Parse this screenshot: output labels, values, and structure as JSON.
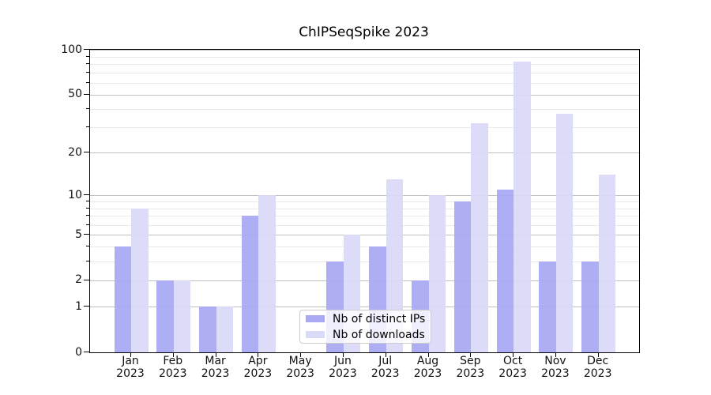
{
  "title": "ChIPSeqSpike 2023",
  "legend": {
    "items": [
      {
        "label": "Nb of distinct IPs",
        "color": "#a8a8f3"
      },
      {
        "label": "Nb of downloads",
        "color": "#d9d9f8"
      }
    ]
  },
  "y_axis": {
    "tick_labels": [
      "100",
      "50",
      "20",
      "10",
      "5",
      "2",
      "1",
      "0"
    ],
    "tick_values": [
      100,
      50,
      20,
      10,
      5,
      2,
      1,
      0
    ],
    "minor_gridline_values": [
      3,
      4,
      6,
      7,
      8,
      9,
      30,
      40,
      60,
      70,
      80,
      90
    ],
    "scale": "log10(1+value)",
    "range": [
      0,
      100
    ]
  },
  "x_axis": {
    "months": [
      "Jan",
      "Feb",
      "Mar",
      "Apr",
      "May",
      "Jun",
      "Jul",
      "Aug",
      "Sep",
      "Oct",
      "Nov",
      "Dec"
    ],
    "year": "2023"
  },
  "chart_data": {
    "type": "bar",
    "title": "ChIPSeqSpike 2023",
    "categories": [
      "Jan 2023",
      "Feb 2023",
      "Mar 2023",
      "Apr 2023",
      "May 2023",
      "Jun 2023",
      "Jul 2023",
      "Aug 2023",
      "Sep 2023",
      "Oct 2023",
      "Nov 2023",
      "Dec 2023"
    ],
    "series": [
      {
        "name": "Nb of distinct IPs",
        "color": "#a8a8f3",
        "values": [
          4,
          2,
          1,
          7,
          0,
          3,
          4,
          2,
          9,
          11,
          3,
          3
        ]
      },
      {
        "name": "Nb of downloads",
        "color": "#d9d9f8",
        "values": [
          8,
          2,
          1,
          10,
          0,
          5,
          13,
          10,
          32,
          83,
          37,
          14
        ]
      }
    ],
    "y_scale": "log1p",
    "ylim": [
      0,
      100
    ],
    "grid": true,
    "legend_position": "lower center"
  },
  "colors": {
    "background": "#ffffff",
    "axis": "#000000",
    "major_grid": "#c0c0c0",
    "minor_grid": "#eaeaea",
    "text": "#111111"
  }
}
